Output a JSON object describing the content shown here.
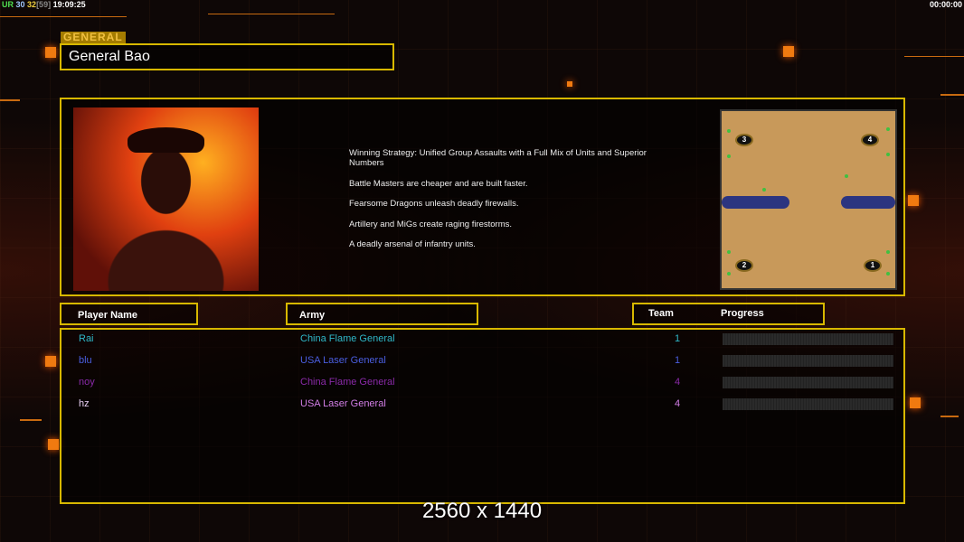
{
  "status": {
    "ur": "UR",
    "a": "30",
    "b": "32",
    "c": "[59]",
    "time": "19:09:25"
  },
  "clock": "00:00:00",
  "general_label": "GENERAL",
  "general_name": "General Bao",
  "description": [
    "Winning Strategy: Unified Group Assaults with a Full Mix of Units and Superior Numbers",
    "Battle Masters are cheaper and are built faster.",
    "Fearsome Dragons unleash deadly firewalls.",
    "Artillery and MiGs create raging firestorms.",
    "A deadly arsenal of infantry units."
  ],
  "map": {
    "starts": [
      "1",
      "2",
      "3",
      "4"
    ]
  },
  "headers": {
    "player": "Player Name",
    "army": "Army",
    "team": "Team",
    "progress": "Progress"
  },
  "players": [
    {
      "name": "Rai",
      "army": "China Flame General",
      "team": "1",
      "progress": 0,
      "color": "#2fb8c8"
    },
    {
      "name": "blu",
      "army": "USA Laser General",
      "team": "1",
      "progress": 0,
      "color": "#4a5ee0"
    },
    {
      "name": "noy",
      "army": "China Flame General",
      "team": "4",
      "progress": 0,
      "color": "#8a2aa8"
    },
    {
      "name": "hz",
      "army": "USA Laser General",
      "team": "4",
      "progress": 0,
      "color": "#d27ee6"
    }
  ],
  "resolution": "2560 x 1440"
}
